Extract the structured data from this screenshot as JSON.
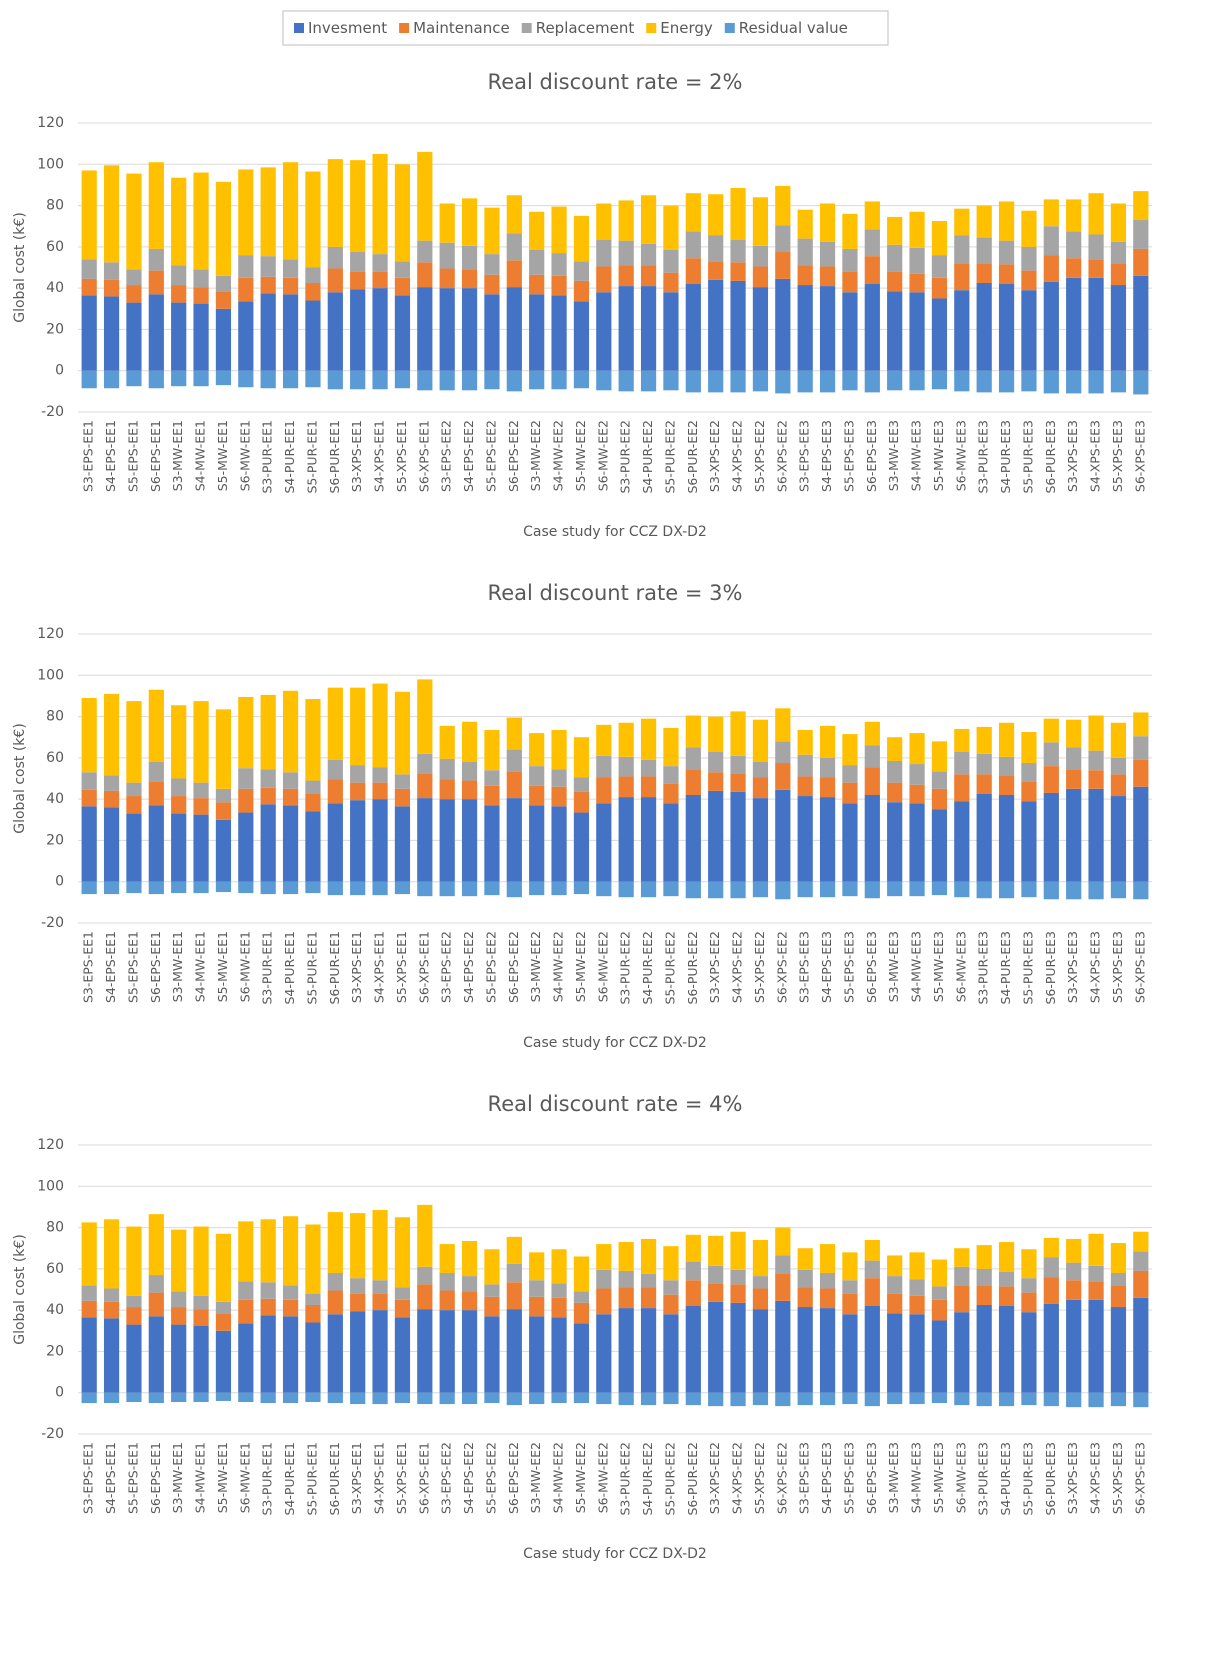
{
  "chart_data": [
    {
      "type": "bar",
      "stacked": true,
      "legend": "top",
      "grid": true,
      "title": "Real discount rate = 2%",
      "x_label": "Case study for CCZ DX-D2",
      "y_label": "Global cost (k€)",
      "ylim": [
        -20,
        120
      ],
      "yticks": [
        -20,
        0,
        20,
        40,
        60,
        80,
        100,
        120
      ],
      "categories": [
        "S3-EPS-EE1",
        "S4-EPS-EE1",
        "S5-EPS-EE1",
        "S6-EPS-EE1",
        "S3-MW-EE1",
        "S4-MW-EE1",
        "S5-MW-EE1",
        "S6-MW-EE1",
        "S3-PUR-EE1",
        "S4-PUR-EE1",
        "S5-PUR-EE1",
        "S6-PUR-EE1",
        "S3-XPS-EE1",
        "S4-XPS-EE1",
        "S5-XPS-EE1",
        "S6-XPS-EE1",
        "S3-EPS-EE2",
        "S4-EPS-EE2",
        "S5-EPS-EE2",
        "S6-EPS-EE2",
        "S3-MW-EE2",
        "S4-MW-EE2",
        "S5-MW-EE2",
        "S6-MW-EE2",
        "S3-PUR-EE2",
        "S4-PUR-EE2",
        "S5-PUR-EE2",
        "S6-PUR-EE2",
        "S3-XPS-EE2",
        "S4-XPS-EE2",
        "S5-XPS-EE2",
        "S6-XPS-EE2",
        "S3-EPS-EE3",
        "S4-EPS-EE3",
        "S5-EPS-EE3",
        "S6-EPS-EE3",
        "S3-MW-EE3",
        "S4-MW-EE3",
        "S5-MW-EE3",
        "S6-MW-EE3",
        "S3-PUR-EE3",
        "S4-PUR-EE3",
        "S5-PUR-EE3",
        "S6-PUR-EE3",
        "S3-XPS-EE3",
        "S4-XPS-EE3",
        "S5-XPS-EE3",
        "S6-XPS-EE3"
      ],
      "series": [
        {
          "name": "Invesment",
          "color": "#4472c4",
          "values": [
            36.5,
            36,
            33,
            37,
            33,
            32.5,
            30,
            33.5,
            37.5,
            37,
            34,
            38,
            39.5,
            40,
            36.5,
            40.5,
            40,
            40,
            37,
            40.5,
            37,
            36.5,
            33.5,
            38,
            41,
            41,
            38,
            42,
            44,
            43.5,
            40.5,
            44.5,
            41.5,
            41,
            38,
            42,
            38.5,
            38,
            35,
            39,
            42.5,
            42,
            39,
            43,
            45,
            45,
            41.5,
            46
          ]
        },
        {
          "name": "Maintenance",
          "color": "#ed7d31",
          "values": [
            8,
            8,
            8.5,
            11.5,
            8.5,
            8,
            8.5,
            11.5,
            8,
            8,
            8.5,
            11.5,
            8.5,
            8,
            8.5,
            12,
            9.5,
            9,
            9.5,
            13,
            9.5,
            9.5,
            10,
            12.5,
            10,
            10,
            9.5,
            12.5,
            9,
            9,
            10,
            13,
            9.5,
            9.5,
            10,
            13.5,
            9.5,
            9,
            10,
            13,
            9.5,
            9.5,
            9.5,
            13,
            9.5,
            9,
            10.5,
            13
          ]
        },
        {
          "name": "Replacement",
          "color": "#a5a5a5",
          "values": [
            9.5,
            8.5,
            7.5,
            10.5,
            9.5,
            8.5,
            7.5,
            11,
            10,
            9,
            7.5,
            10.5,
            9.5,
            8.5,
            8,
            10.5,
            12.5,
            11.5,
            10,
            13,
            12,
            11,
            9.5,
            13,
            12,
            10.5,
            11,
            13,
            12.5,
            11,
            10,
            13,
            13,
            12,
            11,
            13,
            13,
            12.5,
            11,
            13.5,
            12.5,
            11.5,
            11.5,
            14,
            13,
            12,
            10.5,
            14
          ]
        },
        {
          "name": "Energy",
          "color": "#ffc000",
          "values": [
            43,
            47,
            46.5,
            42,
            42.5,
            47,
            45.5,
            41.5,
            43,
            47,
            46.5,
            42.5,
            44.5,
            48.5,
            47,
            43,
            19,
            23,
            22.5,
            18.5,
            18.5,
            22.5,
            22,
            17.5,
            19.5,
            23.5,
            21.5,
            18.5,
            20,
            25,
            23.5,
            19,
            14,
            18.5,
            17,
            13.5,
            13.5,
            17.5,
            16.5,
            13,
            15.5,
            19,
            17.5,
            13,
            15.5,
            20,
            18.5,
            14
          ]
        },
        {
          "name": "Residual value",
          "color": "#5b9bd5",
          "values": [
            -8.5,
            -8.5,
            -7.5,
            -8.5,
            -7.5,
            -7.5,
            -7,
            -8,
            -8.5,
            -8.5,
            -8,
            -9,
            -9,
            -9,
            -8.5,
            -9.5,
            -9.5,
            -9.5,
            -9,
            -10,
            -9,
            -9,
            -8.5,
            -9.5,
            -10,
            -10,
            -9.5,
            -10.5,
            -10.5,
            -10.5,
            -10,
            -11,
            -10.5,
            -10.5,
            -9.5,
            -10.5,
            -9.5,
            -9.5,
            -9,
            -10,
            -10.5,
            -10.5,
            -10,
            -11,
            -11,
            -11,
            -10.5,
            -11.5
          ]
        }
      ]
    },
    {
      "type": "bar",
      "stacked": true,
      "grid": true,
      "title": "Real discount rate = 3%",
      "x_label": "Case study for CCZ DX-D2",
      "y_label": "Global cost (k€)",
      "ylim": [
        -20,
        120
      ],
      "yticks": [
        -20,
        0,
        20,
        40,
        60,
        80,
        100,
        120
      ],
      "categories": [
        "S3-EPS-EE1",
        "S4-EPS-EE1",
        "S5-EPS-EE1",
        "S6-EPS-EE1",
        "S3-MW-EE1",
        "S4-MW-EE1",
        "S5-MW-EE1",
        "S6-MW-EE1",
        "S3-PUR-EE1",
        "S4-PUR-EE1",
        "S5-PUR-EE1",
        "S6-PUR-EE1",
        "S3-XPS-EE1",
        "S4-XPS-EE1",
        "S5-XPS-EE1",
        "S6-XPS-EE1",
        "S3-EPS-EE2",
        "S4-EPS-EE2",
        "S5-EPS-EE2",
        "S6-EPS-EE2",
        "S3-MW-EE2",
        "S4-MW-EE2",
        "S5-MW-EE2",
        "S6-MW-EE2",
        "S3-PUR-EE2",
        "S4-PUR-EE2",
        "S5-PUR-EE2",
        "S6-PUR-EE2",
        "S3-XPS-EE2",
        "S4-XPS-EE2",
        "S5-XPS-EE2",
        "S6-XPS-EE2",
        "S3-EPS-EE3",
        "S4-EPS-EE3",
        "S5-EPS-EE3",
        "S6-EPS-EE3",
        "S3-MW-EE3",
        "S4-MW-EE3",
        "S5-MW-EE3",
        "S6-MW-EE3",
        "S3-PUR-EE3",
        "S4-PUR-EE3",
        "S5-PUR-EE3",
        "S6-PUR-EE3",
        "S3-XPS-EE3",
        "S4-XPS-EE3",
        "S5-XPS-EE3",
        "S6-XPS-EE3"
      ],
      "series": [
        {
          "name": "Invesment",
          "color": "#4472c4",
          "values": [
            36.5,
            36,
            33,
            37,
            33,
            32.5,
            30,
            33.5,
            37.5,
            37,
            34,
            38,
            39.5,
            40,
            36.5,
            40.5,
            40,
            40,
            37,
            40.5,
            37,
            36.5,
            33.5,
            38,
            41,
            41,
            38,
            42,
            44,
            43.5,
            40.5,
            44.5,
            41.5,
            41,
            38,
            42,
            38.5,
            38,
            35,
            39,
            42.5,
            42,
            39,
            43,
            45,
            45,
            41.5,
            46
          ]
        },
        {
          "name": "Maintenance",
          "color": "#ed7d31",
          "values": [
            8,
            8,
            8.5,
            11.5,
            8.5,
            8,
            8.5,
            11.5,
            8,
            8,
            8.5,
            11.5,
            8.5,
            8,
            8.5,
            12,
            9.5,
            9,
            9.5,
            13,
            9.5,
            9.5,
            10,
            12.5,
            10,
            10,
            9.5,
            12.5,
            9,
            9,
            10,
            13,
            9.5,
            9.5,
            10,
            13.5,
            9.5,
            9,
            10,
            13,
            9.5,
            9.5,
            9.5,
            13,
            9.5,
            9,
            10.5,
            13
          ]
        },
        {
          "name": "Replacement",
          "color": "#a5a5a5",
          "values": [
            8.5,
            7.5,
            6.5,
            9.5,
            8.5,
            7.5,
            6.5,
            10,
            9,
            8,
            6.5,
            9.5,
            8.5,
            7.5,
            7,
            9.5,
            10,
            9,
            7.5,
            10.5,
            9.5,
            8.5,
            7,
            10.5,
            9.5,
            8,
            8.5,
            10.5,
            10,
            8.5,
            7.5,
            10.5,
            10.5,
            9.5,
            8.5,
            10.5,
            10.5,
            10,
            8.5,
            11,
            10,
            9,
            9,
            11.5,
            10.5,
            9.5,
            8,
            11.5
          ]
        },
        {
          "name": "Energy",
          "color": "#ffc000",
          "values": [
            36,
            39.5,
            39.5,
            35,
            35.5,
            39.5,
            38.5,
            34.5,
            36,
            39.5,
            39.5,
            35,
            37.5,
            40.5,
            40,
            36,
            16,
            19.5,
            19.5,
            15.5,
            16,
            19,
            19.5,
            15,
            16.5,
            20,
            18.5,
            15.5,
            17,
            21.5,
            20.5,
            16,
            12,
            15.5,
            15,
            11.5,
            11.5,
            15,
            14.5,
            11,
            13,
            16.5,
            15,
            11.5,
            13.5,
            17,
            17,
            11.5
          ]
        },
        {
          "name": "Residual value",
          "color": "#5b9bd5",
          "values": [
            -6,
            -6,
            -5.5,
            -6,
            -5.5,
            -5.5,
            -5,
            -5.5,
            -6,
            -6,
            -5.5,
            -6.5,
            -6.5,
            -6.5,
            -6,
            -7,
            -7,
            -7,
            -6.5,
            -7.5,
            -6.5,
            -6.5,
            -6,
            -7,
            -7.5,
            -7.5,
            -7,
            -8,
            -8,
            -8,
            -7.5,
            -8.5,
            -7.5,
            -7.5,
            -7,
            -8,
            -7,
            -7,
            -6.5,
            -7.5,
            -8,
            -8,
            -7.5,
            -8.5,
            -8.5,
            -8.5,
            -8,
            -8.5
          ]
        }
      ]
    },
    {
      "type": "bar",
      "stacked": true,
      "grid": true,
      "title": "Real discount rate = 4%",
      "x_label": "Case study for CCZ DX-D2",
      "y_label": "Global cost (k€)",
      "ylim": [
        -20,
        120
      ],
      "yticks": [
        -20,
        0,
        20,
        40,
        60,
        80,
        100,
        120
      ],
      "categories": [
        "S3-EPS-EE1",
        "S4-EPS-EE1",
        "S5-EPS-EE1",
        "S6-EPS-EE1",
        "S3-MW-EE1",
        "S4-MW-EE1",
        "S5-MW-EE1",
        "S6-MW-EE1",
        "S3-PUR-EE1",
        "S4-PUR-EE1",
        "S5-PUR-EE1",
        "S6-PUR-EE1",
        "S3-XPS-EE1",
        "S4-XPS-EE1",
        "S5-XPS-EE1",
        "S6-XPS-EE1",
        "S3-EPS-EE2",
        "S4-EPS-EE2",
        "S5-EPS-EE2",
        "S6-EPS-EE2",
        "S3-MW-EE2",
        "S4-MW-EE2",
        "S5-MW-EE2",
        "S6-MW-EE2",
        "S3-PUR-EE2",
        "S4-PUR-EE2",
        "S5-PUR-EE2",
        "S6-PUR-EE2",
        "S3-XPS-EE2",
        "S4-XPS-EE2",
        "S5-XPS-EE2",
        "S6-XPS-EE2",
        "S3-EPS-EE3",
        "S4-EPS-EE3",
        "S5-EPS-EE3",
        "S6-EPS-EE3",
        "S3-MW-EE3",
        "S4-MW-EE3",
        "S5-MW-EE3",
        "S6-MW-EE3",
        "S3-PUR-EE3",
        "S4-PUR-EE3",
        "S5-PUR-EE3",
        "S6-PUR-EE3",
        "S3-XPS-EE3",
        "S4-XPS-EE3",
        "S5-XPS-EE3",
        "S6-XPS-EE3"
      ],
      "series": [
        {
          "name": "Invesment",
          "color": "#4472c4",
          "values": [
            36.5,
            36,
            33,
            37,
            33,
            32.5,
            30,
            33.5,
            37.5,
            37,
            34,
            38,
            39.5,
            40,
            36.5,
            40.5,
            40,
            40,
            37,
            40.5,
            37,
            36.5,
            33.5,
            38,
            41,
            41,
            38,
            42,
            44,
            43.5,
            40.5,
            44.5,
            41.5,
            41,
            38,
            42,
            38.5,
            38,
            35,
            39,
            42.5,
            42,
            39,
            43,
            45,
            45,
            41.5,
            46
          ]
        },
        {
          "name": "Maintenance",
          "color": "#ed7d31",
          "values": [
            8,
            8,
            8.5,
            11.5,
            8.5,
            8,
            8.5,
            11.5,
            8,
            8,
            8.5,
            11.5,
            8.5,
            8,
            8.5,
            12,
            9.5,
            9,
            9.5,
            13,
            9.5,
            9.5,
            10,
            12.5,
            10,
            10,
            9.5,
            12.5,
            9,
            9,
            10,
            13,
            9.5,
            9.5,
            10,
            13.5,
            9.5,
            9,
            10,
            13,
            9.5,
            9.5,
            9.5,
            13,
            9.5,
            9,
            10.5,
            13
          ]
        },
        {
          "name": "Replacement",
          "color": "#a5a5a5",
          "values": [
            7.5,
            6.5,
            5.5,
            8.5,
            7.5,
            6.5,
            5.5,
            9,
            8,
            7,
            5.5,
            8.5,
            7.5,
            6.5,
            6,
            8.5,
            8.5,
            7.5,
            6,
            9,
            8,
            7,
            5.5,
            9,
            8,
            6.5,
            7,
            9,
            8.5,
            7,
            6,
            9,
            8.5,
            7.5,
            6.5,
            8.5,
            8.5,
            8,
            6.5,
            9,
            8,
            7,
            7,
            9.5,
            8.5,
            7.5,
            6,
            9.5
          ]
        },
        {
          "name": "Energy",
          "color": "#ffc000",
          "values": [
            30.5,
            33.5,
            33.5,
            29.5,
            30,
            33.5,
            33,
            29,
            30.5,
            33.5,
            33.5,
            29.5,
            31.5,
            34,
            34,
            30,
            14,
            17,
            17,
            13,
            13.5,
            16.5,
            17,
            12.5,
            14,
            17,
            16.5,
            13,
            14.5,
            18.5,
            17.5,
            13.5,
            10.5,
            14,
            13.5,
            10,
            10,
            13,
            13,
            9,
            11.5,
            14.5,
            14,
            9.5,
            11.5,
            15.5,
            14.5,
            9.5
          ]
        },
        {
          "name": "Residual value",
          "color": "#5b9bd5",
          "values": [
            -5,
            -5,
            -4.5,
            -5,
            -4.5,
            -4.5,
            -4,
            -4.5,
            -5,
            -5,
            -4.5,
            -5,
            -5.5,
            -5.5,
            -5,
            -5.5,
            -5.5,
            -5.5,
            -5,
            -6,
            -5.5,
            -5,
            -5,
            -5.5,
            -6,
            -6,
            -5.5,
            -6,
            -6.5,
            -6.5,
            -6,
            -6.5,
            -6,
            -6,
            -5.5,
            -6.5,
            -5.5,
            -5.5,
            -5,
            -6,
            -6.5,
            -6.5,
            -6,
            -6.5,
            -7,
            -7,
            -6.5,
            -7
          ]
        }
      ]
    }
  ]
}
